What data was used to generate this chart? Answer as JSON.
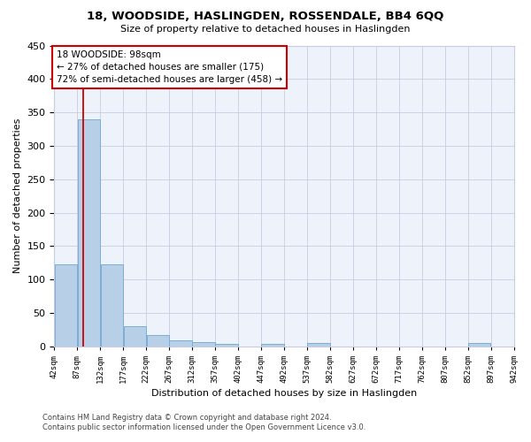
{
  "title": "18, WOODSIDE, HASLINGDEN, ROSSENDALE, BB4 6QQ",
  "subtitle": "Size of property relative to detached houses in Haslingden",
  "xlabel": "Distribution of detached houses by size in Haslingden",
  "ylabel": "Number of detached properties",
  "bar_color": "#b8cfe8",
  "bar_edge_color": "#7aaed6",
  "background_color": "#eef2fa",
  "grid_color": "#c8cce0",
  "bins": [
    42,
    87,
    132,
    177,
    222,
    267,
    312,
    357,
    402,
    447,
    492,
    537,
    582,
    627,
    672,
    717,
    762,
    807,
    852,
    897,
    942
  ],
  "values": [
    123,
    340,
    123,
    30,
    17,
    9,
    6,
    4,
    0,
    4,
    0,
    5,
    0,
    0,
    0,
    0,
    0,
    0,
    5,
    0
  ],
  "property_size": 98,
  "vline_color": "#cc0000",
  "annotation_text": "18 WOODSIDE: 98sqm\n← 27% of detached houses are smaller (175)\n72% of semi-detached houses are larger (458) →",
  "annotation_box_color": "white",
  "annotation_box_edge": "#cc0000",
  "ylim": [
    0,
    450
  ],
  "yticks": [
    0,
    50,
    100,
    150,
    200,
    250,
    300,
    350,
    400,
    450
  ],
  "footer_line1": "Contains HM Land Registry data © Crown copyright and database right 2024.",
  "footer_line2": "Contains public sector information licensed under the Open Government Licence v3.0."
}
